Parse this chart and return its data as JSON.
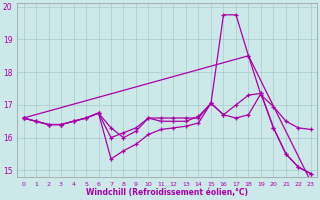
{
  "xlabel": "Windchill (Refroidissement éolien,°C)",
  "background_color": "#cce8e8",
  "grid_color": "#aacccc",
  "line_color": "#aa00aa",
  "xlim": [
    -0.5,
    23.5
  ],
  "ylim": [
    14.8,
    20.1
  ],
  "yticks": [
    15,
    16,
    17,
    18,
    19,
    20
  ],
  "xticks": [
    0,
    1,
    2,
    3,
    4,
    5,
    6,
    7,
    8,
    9,
    10,
    11,
    12,
    13,
    14,
    15,
    16,
    17,
    18,
    19,
    20,
    21,
    22,
    23
  ],
  "hours": [
    0,
    1,
    2,
    3,
    4,
    5,
    6,
    7,
    8,
    9,
    10,
    11,
    12,
    13,
    14,
    15,
    16,
    17,
    18,
    19,
    20,
    21,
    22,
    23
  ],
  "line_upper_diag": [
    [
      0,
      16.6
    ],
    [
      18,
      18.5
    ],
    [
      23,
      14.65
    ]
  ],
  "line_peak": [
    16.6,
    16.5,
    16.4,
    16.4,
    16.5,
    16.6,
    16.75,
    16.0,
    16.15,
    16.3,
    16.6,
    16.6,
    16.6,
    16.6,
    16.6,
    17.05,
    19.75,
    19.75,
    18.5,
    17.3,
    16.95,
    16.5,
    16.3,
    16.25
  ],
  "line_mid": [
    16.6,
    16.5,
    16.4,
    16.4,
    16.5,
    16.6,
    16.75,
    16.3,
    16.0,
    16.2,
    16.6,
    16.5,
    16.5,
    16.5,
    16.65,
    17.05,
    16.7,
    17.0,
    17.3,
    17.35,
    16.3,
    15.5,
    15.1,
    14.9
  ],
  "line_low": [
    16.6,
    16.5,
    16.4,
    16.4,
    16.5,
    16.6,
    16.75,
    15.35,
    15.6,
    15.8,
    16.1,
    16.25,
    16.3,
    16.35,
    16.45,
    17.05,
    16.7,
    16.6,
    16.7,
    17.35,
    16.3,
    15.5,
    15.1,
    14.9
  ]
}
